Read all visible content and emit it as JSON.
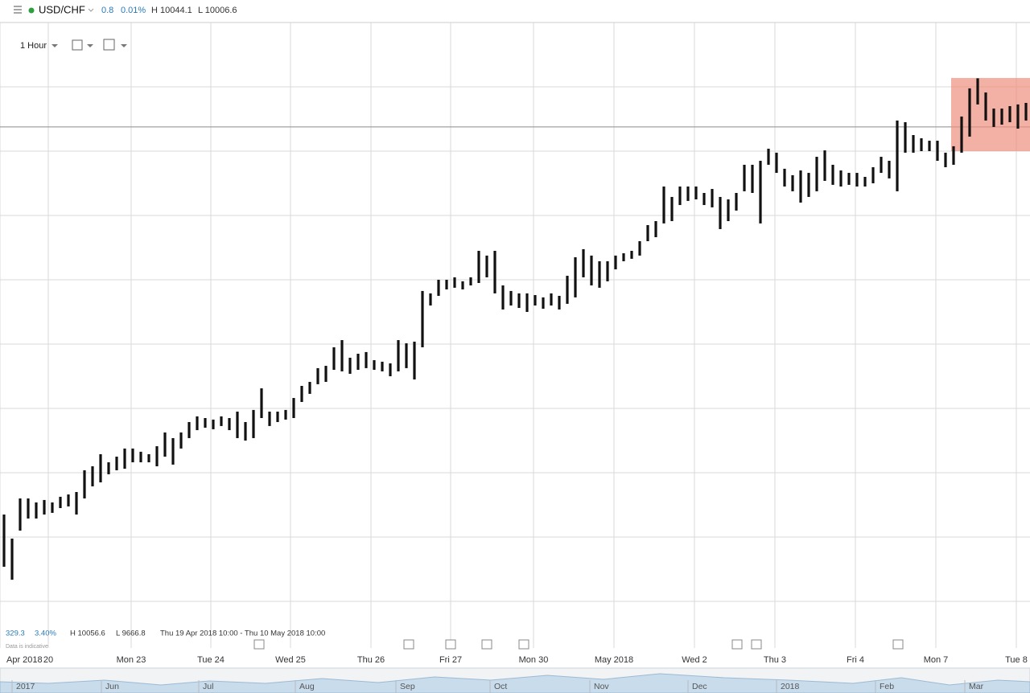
{
  "header": {
    "instrument": "USD/CHF",
    "change": "0.8",
    "change_pct": "0.01%",
    "high": "H 10044.1",
    "low": "L 10006.6"
  },
  "toolbar": {
    "interval": "1 Hour"
  },
  "summary": {
    "change": "329.3",
    "change_pct": "3.40%",
    "high": "H 10056.6",
    "low": "L 9666.8",
    "range": "Thu 19 Apr 2018 10:00 - Thu 10 May 2018 10:00",
    "note": "Data is indicative"
  },
  "navigator": {
    "labels": [
      "2017",
      "Jun",
      "Jul",
      "Aug",
      "Sep",
      "Oct",
      "Nov",
      "Dec",
      "2018",
      "Feb",
      "Mar"
    ]
  },
  "chart_data": {
    "type": "range_bar",
    "color": "#111111",
    "grid": true,
    "xlim": [
      -1,
      255
    ],
    "ylim": [
      9600,
      10100
    ],
    "yticks": [
      9650,
      9700,
      9750,
      9800,
      9850,
      9900,
      9950,
      10000,
      10050
    ],
    "xticks": [
      {
        "value": -1,
        "label": "Apr 2018"
      },
      {
        "value": 11,
        "label": "20"
      },
      {
        "value": 31.6,
        "label": "Mon 23"
      },
      {
        "value": 51.4,
        "label": "Tue 24"
      },
      {
        "value": 71.2,
        "label": "Wed 25"
      },
      {
        "value": 91.2,
        "label": "Thu 26"
      },
      {
        "value": 111,
        "label": "Fri 27"
      },
      {
        "value": 131.6,
        "label": "Mon 30"
      },
      {
        "value": 151.6,
        "label": "May 2018"
      },
      {
        "value": 171.6,
        "label": "Wed 2"
      },
      {
        "value": 191.6,
        "label": "Thu 3"
      },
      {
        "value": 211.6,
        "label": "Fri 4"
      },
      {
        "value": 231.6,
        "label": "Mon 7"
      },
      {
        "value": 251.6,
        "label": "Tue 8"
      }
    ],
    "reference_line": 10018.8,
    "x": [
      0,
      2,
      4,
      6,
      8,
      10,
      12,
      14,
      16,
      18,
      20,
      22,
      24,
      26,
      28,
      30,
      32,
      34,
      36,
      38,
      40,
      42,
      44,
      46,
      48,
      50,
      52,
      54,
      56,
      58,
      60,
      62,
      64,
      66,
      68,
      70,
      72,
      74,
      76,
      78,
      80,
      82,
      84,
      86,
      88,
      90,
      92,
      94,
      96,
      98,
      100,
      102,
      104,
      106,
      108,
      110,
      112,
      114,
      116,
      118,
      120,
      122,
      124,
      126,
      128,
      130,
      132,
      134,
      136,
      138,
      140,
      142,
      144,
      146,
      148,
      150,
      152,
      154,
      156,
      158,
      160,
      162,
      164,
      166,
      168,
      170,
      172,
      174,
      176,
      178,
      180,
      182,
      184,
      186,
      188,
      190,
      192,
      194,
      196,
      198,
      200,
      202,
      204,
      206,
      208,
      210,
      212,
      214,
      216,
      218,
      220,
      222,
      224,
      226,
      228,
      230,
      232,
      234,
      236,
      238,
      240,
      242,
      244,
      246,
      248,
      250,
      252,
      254
    ],
    "high": [
      9717.5,
      9698.8,
      9730.0,
      9730.0,
      9726.9,
      9728.8,
      9726.9,
      9731.3,
      9733.1,
      9735.0,
      9751.9,
      9755.0,
      9764.4,
      9758.1,
      9762.5,
      9768.8,
      9768.8,
      9766.3,
      9764.4,
      9770.6,
      9781.3,
      9776.9,
      9781.3,
      9789.4,
      9793.8,
      9792.5,
      9791.3,
      9793.8,
      9792.5,
      9797.5,
      9789.4,
      9798.8,
      9815.6,
      9797.5,
      9797.5,
      9798.8,
      9808.1,
      9817.5,
      9820.6,
      9831.3,
      9833.1,
      9847.5,
      9853.1,
      9839.4,
      9842.5,
      9843.8,
      9837.5,
      9836.3,
      9835.0,
      9853.1,
      9850.6,
      9851.9,
      9891.3,
      9889.4,
      9900.0,
      9900.0,
      9901.9,
      9898.8,
      9901.9,
      9922.5,
      9918.8,
      9922.5,
      9895.6,
      9891.3,
      9889.4,
      9889.4,
      9888.1,
      9886.3,
      9889.4,
      9887.5,
      9903.1,
      9917.5,
      9923.8,
      9918.8,
      9914.4,
      9914.4,
      9918.8,
      9920.6,
      9922.5,
      9930.0,
      9942.5,
      9945.6,
      9972.5,
      9964.4,
      9972.5,
      9972.5,
      9972.5,
      9967.5,
      9970.6,
      9964.4,
      9962.5,
      9967.5,
      9989.4,
      9989.4,
      9992.5,
      10001.9,
      9998.8,
      9986.3,
      9981.3,
      9985.0,
      9983.1,
      9995.6,
      10000.6,
      9989.4,
      9985.0,
      9983.1,
      9983.1,
      9980.0,
      9987.5,
      9995.6,
      9992.5,
      10023.8,
      10022.5,
      10012.5,
      10010.0,
      10008.1,
      10008.1,
      9998.8,
      10003.8,
      10026.9,
      10048.8,
      10056.6,
      10045.6,
      10033.1,
      10033.1,
      10035.0,
      10036.3,
      10037.5
    ],
    "low": [
      9676.9,
      9666.8,
      9705.0,
      9714.4,
      9714.4,
      9717.5,
      9718.8,
      9722.5,
      9723.8,
      9717.5,
      9730.0,
      9739.4,
      9742.5,
      9748.8,
      9751.9,
      9753.1,
      9758.1,
      9758.1,
      9758.1,
      9755.0,
      9762.5,
      9756.3,
      9768.8,
      9776.9,
      9783.1,
      9785.0,
      9783.8,
      9786.3,
      9783.1,
      9776.9,
      9775.0,
      9776.9,
      9792.5,
      9786.3,
      9789.4,
      9791.3,
      9792.5,
      9805.0,
      9811.3,
      9818.8,
      9820.6,
      9830.0,
      9828.8,
      9826.9,
      9830.0,
      9831.3,
      9830.0,
      9828.8,
      9825.0,
      9828.8,
      9831.3,
      9822.5,
      9847.5,
      9880.0,
      9887.5,
      9892.5,
      9893.8,
      9892.5,
      9895.6,
      9897.5,
      9901.9,
      9889.4,
      9876.9,
      9880.0,
      9878.1,
      9875.0,
      9880.0,
      9877.5,
      9880.0,
      9876.9,
      9881.3,
      9886.3,
      9901.9,
      9895.6,
      9893.8,
      9898.8,
      9908.1,
      9914.4,
      9916.3,
      9918.8,
      9930.0,
      9933.1,
      9943.8,
      9945.6,
      9958.1,
      9961.3,
      9962.5,
      9958.1,
      9956.3,
      9939.4,
      9945.6,
      9953.8,
      9968.8,
      9967.5,
      9943.8,
      9989.4,
      9983.1,
      9972.5,
      9968.8,
      9960.0,
      9964.4,
      9968.8,
      9976.9,
      9973.8,
      9972.5,
      9973.8,
      9972.5,
      9972.5,
      9975.0,
      9983.1,
      9978.8,
      9968.8,
      9998.8,
      9998.8,
      10000.0,
      10000.0,
      9992.5,
      9987.5,
      9989.4,
      9998.8,
      10011.3,
      10036.3,
      10023.8,
      10018.8,
      10020.6,
      10022.5,
      10017.5,
      10023.8
    ]
  }
}
